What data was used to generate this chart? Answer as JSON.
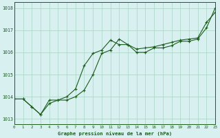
{
  "x": [
    0,
    1,
    2,
    3,
    4,
    5,
    6,
    7,
    8,
    9,
    10,
    11,
    12,
    13,
    14,
    15,
    16,
    17,
    18,
    19,
    20,
    21,
    22,
    23
  ],
  "line1": [
    1013.9,
    1013.9,
    1013.55,
    1013.2,
    1013.7,
    1013.85,
    1014.0,
    1014.35,
    1015.4,
    1015.95,
    1016.1,
    1016.55,
    1016.35,
    1016.35,
    1016.15,
    1016.2,
    1016.25,
    1016.35,
    1016.45,
    1016.55,
    1016.6,
    1016.65,
    1017.35,
    1017.8
  ],
  "line2": [
    1013.9,
    1013.9,
    1013.55,
    1013.2,
    1013.85,
    1013.85,
    1013.85,
    1014.0,
    1014.3,
    1015.0,
    1015.95,
    1016.1,
    1016.6,
    1016.35,
    1016.0,
    1016.0,
    1016.2,
    1016.2,
    1016.3,
    1016.5,
    1016.5,
    1016.6,
    1017.1,
    1018.0
  ],
  "xlim": [
    0,
    23
  ],
  "ylim": [
    1012.75,
    1018.25
  ],
  "yticks": [
    1013,
    1014,
    1015,
    1016,
    1017,
    1018
  ],
  "xticks": [
    0,
    1,
    2,
    3,
    4,
    5,
    6,
    7,
    8,
    9,
    10,
    11,
    12,
    13,
    14,
    15,
    16,
    17,
    18,
    19,
    20,
    21,
    22,
    23
  ],
  "line_color": "#1a5c1a",
  "bg_color": "#d8f0f0",
  "grid_color": "#b0d8cc",
  "xlabel": "Graphe pression niveau de la mer (hPa)",
  "xlabel_color": "#1a5c1a",
  "tick_color": "#1a5c1a"
}
